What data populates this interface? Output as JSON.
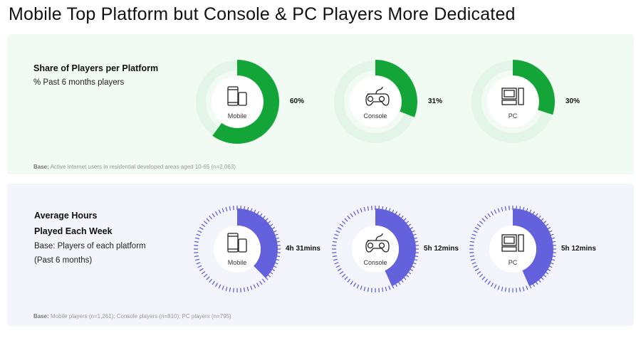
{
  "title": "Mobile Top Platform but Console & PC Players More Dedicated",
  "colors": {
    "share": "#13a538",
    "share_track": "#e3f4e8",
    "hours": "#6461dc",
    "hours_ticks": "#6461dc"
  },
  "chart_data": [
    {
      "type": "donut",
      "title": "Share of Players per Platform",
      "subtitle": "% Past 6 months players",
      "base_label": "Base:",
      "base": "Active internet users in residential developed areas aged 10-65 (n=2,063)",
      "categories": [
        "Mobile",
        "Console",
        "PC"
      ],
      "icons": [
        "smartphone-icon",
        "gamepad-icon",
        "desktop-pc-icon"
      ],
      "values": [
        60,
        31,
        30
      ],
      "labels": [
        "60%",
        "31%",
        "30%"
      ]
    },
    {
      "type": "donut",
      "title_line1": "Average Hours",
      "title_line2": "Played Each Week",
      "subtitle_line1": "Base: Players of each platform",
      "subtitle_line2": "(Past 6 months)",
      "base_label": "Base:",
      "base": "Mobile players (n=1,261); Console players (n=810); PC players (n=795)",
      "categories": [
        "Mobile",
        "Console",
        "PC"
      ],
      "icons": [
        "smartphone-icon",
        "gamepad-icon",
        "desktop-pc-icon"
      ],
      "values_hours": [
        4.52,
        5.2,
        5.2
      ],
      "labels": [
        "4h 31mins",
        "5h 12mins",
        "5h 12mins"
      ]
    }
  ]
}
